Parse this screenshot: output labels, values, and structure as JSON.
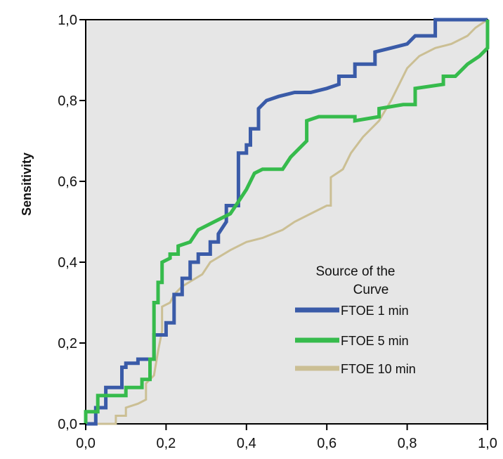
{
  "chart_data": {
    "type": "line",
    "title": "",
    "xlabel": "",
    "ylabel": "Sensitivity",
    "xlim": [
      0.0,
      1.0
    ],
    "ylim": [
      0.0,
      1.0
    ],
    "x_ticks": [
      "0,0",
      "0,2",
      "0,4",
      "0,6",
      "0,8",
      "1,0"
    ],
    "y_ticks": [
      "0,0",
      "0,2",
      "0,4",
      "0,6",
      "0,8",
      "1,0"
    ],
    "grid": false,
    "plot_background": "#e6e6e6",
    "legend": {
      "title_line1": "Source of the",
      "title_line2": "Curve",
      "placement": "bottom-right"
    },
    "series": [
      {
        "name": "FTOE 1 min",
        "color": "#3a5ba8",
        "points": [
          [
            0.0,
            0.0
          ],
          [
            0.025,
            0.0
          ],
          [
            0.025,
            0.04
          ],
          [
            0.05,
            0.04
          ],
          [
            0.05,
            0.09
          ],
          [
            0.09,
            0.09
          ],
          [
            0.09,
            0.14
          ],
          [
            0.1,
            0.14
          ],
          [
            0.1,
            0.15
          ],
          [
            0.13,
            0.15
          ],
          [
            0.13,
            0.16
          ],
          [
            0.17,
            0.16
          ],
          [
            0.17,
            0.22
          ],
          [
            0.2,
            0.22
          ],
          [
            0.2,
            0.25
          ],
          [
            0.22,
            0.25
          ],
          [
            0.22,
            0.32
          ],
          [
            0.24,
            0.32
          ],
          [
            0.24,
            0.36
          ],
          [
            0.26,
            0.36
          ],
          [
            0.26,
            0.4
          ],
          [
            0.28,
            0.4
          ],
          [
            0.28,
            0.42
          ],
          [
            0.31,
            0.42
          ],
          [
            0.31,
            0.45
          ],
          [
            0.33,
            0.45
          ],
          [
            0.33,
            0.47
          ],
          [
            0.35,
            0.5
          ],
          [
            0.35,
            0.54
          ],
          [
            0.38,
            0.54
          ],
          [
            0.38,
            0.67
          ],
          [
            0.4,
            0.67
          ],
          [
            0.4,
            0.69
          ],
          [
            0.41,
            0.69
          ],
          [
            0.41,
            0.73
          ],
          [
            0.43,
            0.73
          ],
          [
            0.43,
            0.78
          ],
          [
            0.45,
            0.8
          ],
          [
            0.48,
            0.81
          ],
          [
            0.52,
            0.82
          ],
          [
            0.56,
            0.82
          ],
          [
            0.6,
            0.83
          ],
          [
            0.63,
            0.84
          ],
          [
            0.63,
            0.86
          ],
          [
            0.67,
            0.86
          ],
          [
            0.67,
            0.89
          ],
          [
            0.72,
            0.89
          ],
          [
            0.72,
            0.92
          ],
          [
            0.76,
            0.93
          ],
          [
            0.8,
            0.94
          ],
          [
            0.82,
            0.96
          ],
          [
            0.87,
            0.96
          ],
          [
            0.87,
            1.0
          ],
          [
            1.0,
            1.0
          ]
        ]
      },
      {
        "name": "FTOE 5 min",
        "color": "#36bb4c",
        "points": [
          [
            0.0,
            0.0
          ],
          [
            0.0,
            0.03
          ],
          [
            0.03,
            0.03
          ],
          [
            0.03,
            0.07
          ],
          [
            0.1,
            0.07
          ],
          [
            0.1,
            0.09
          ],
          [
            0.14,
            0.09
          ],
          [
            0.14,
            0.11
          ],
          [
            0.16,
            0.11
          ],
          [
            0.16,
            0.16
          ],
          [
            0.17,
            0.16
          ],
          [
            0.17,
            0.3
          ],
          [
            0.18,
            0.3
          ],
          [
            0.18,
            0.35
          ],
          [
            0.19,
            0.35
          ],
          [
            0.19,
            0.4
          ],
          [
            0.21,
            0.41
          ],
          [
            0.21,
            0.42
          ],
          [
            0.23,
            0.42
          ],
          [
            0.23,
            0.44
          ],
          [
            0.26,
            0.45
          ],
          [
            0.28,
            0.48
          ],
          [
            0.32,
            0.5
          ],
          [
            0.36,
            0.52
          ],
          [
            0.38,
            0.55
          ],
          [
            0.4,
            0.58
          ],
          [
            0.42,
            0.62
          ],
          [
            0.44,
            0.63
          ],
          [
            0.49,
            0.63
          ],
          [
            0.51,
            0.66
          ],
          [
            0.55,
            0.7
          ],
          [
            0.55,
            0.75
          ],
          [
            0.58,
            0.76
          ],
          [
            0.67,
            0.76
          ],
          [
            0.67,
            0.75
          ],
          [
            0.73,
            0.76
          ],
          [
            0.73,
            0.78
          ],
          [
            0.79,
            0.79
          ],
          [
            0.79,
            0.79
          ],
          [
            0.82,
            0.79
          ],
          [
            0.82,
            0.83
          ],
          [
            0.89,
            0.84
          ],
          [
            0.89,
            0.86
          ],
          [
            0.92,
            0.86
          ],
          [
            0.95,
            0.89
          ],
          [
            0.98,
            0.91
          ],
          [
            1.0,
            0.93
          ],
          [
            1.0,
            1.0
          ]
        ]
      },
      {
        "name": "FTOE 10 min",
        "color": "#cbbf94",
        "points": [
          [
            0.0,
            0.0
          ],
          [
            0.075,
            0.0
          ],
          [
            0.075,
            0.02
          ],
          [
            0.1,
            0.02
          ],
          [
            0.1,
            0.04
          ],
          [
            0.13,
            0.05
          ],
          [
            0.15,
            0.06
          ],
          [
            0.15,
            0.1
          ],
          [
            0.17,
            0.12
          ],
          [
            0.18,
            0.18
          ],
          [
            0.19,
            0.23
          ],
          [
            0.19,
            0.29
          ],
          [
            0.21,
            0.3
          ],
          [
            0.22,
            0.32
          ],
          [
            0.24,
            0.34
          ],
          [
            0.29,
            0.37
          ],
          [
            0.31,
            0.4
          ],
          [
            0.36,
            0.43
          ],
          [
            0.4,
            0.45
          ],
          [
            0.44,
            0.46
          ],
          [
            0.49,
            0.48
          ],
          [
            0.52,
            0.5
          ],
          [
            0.56,
            0.52
          ],
          [
            0.6,
            0.54
          ],
          [
            0.61,
            0.54
          ],
          [
            0.61,
            0.61
          ],
          [
            0.64,
            0.63
          ],
          [
            0.66,
            0.67
          ],
          [
            0.69,
            0.71
          ],
          [
            0.73,
            0.75
          ],
          [
            0.76,
            0.8
          ],
          [
            0.78,
            0.84
          ],
          [
            0.8,
            0.88
          ],
          [
            0.83,
            0.91
          ],
          [
            0.87,
            0.93
          ],
          [
            0.91,
            0.94
          ],
          [
            0.95,
            0.96
          ],
          [
            0.97,
            0.98
          ],
          [
            1.0,
            1.0
          ]
        ]
      }
    ]
  }
}
